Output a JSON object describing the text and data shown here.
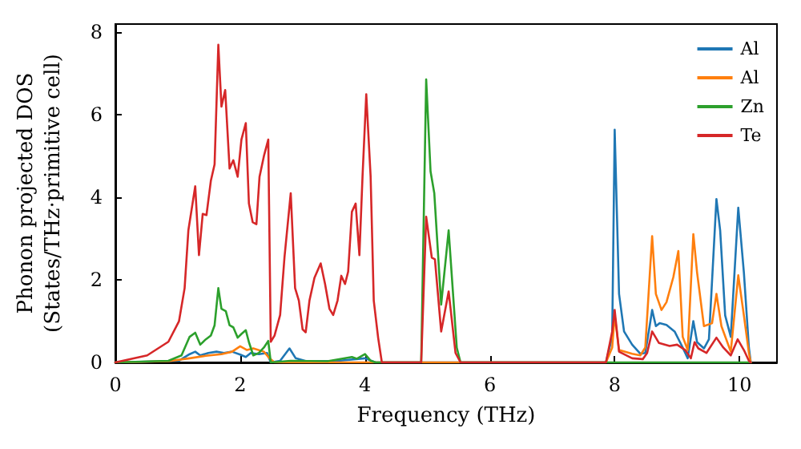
{
  "chart_data": {
    "type": "line",
    "xlabel": "Frequency (THz)",
    "ylabel": "Phonon projected DOS\n(States/THz·primitive cell)",
    "xlim": [
      0,
      10.6
    ],
    "xticks": [
      0,
      2,
      4,
      6,
      8,
      10
    ],
    "ylim": [
      0,
      8.2
    ],
    "yticks": [
      0,
      2,
      4,
      6,
      8
    ],
    "grid": false,
    "legend": "top right",
    "marker": "none",
    "line_style": "solid",
    "series": [
      {
        "name": "Al",
        "color": "#1f77b4",
        "x": [
          0,
          1.02,
          1.19,
          1.28,
          1.36,
          1.49,
          1.62,
          1.74,
          1.87,
          2.0,
          2.09,
          2.17,
          2.3,
          2.43,
          2.49,
          2.64,
          2.79,
          2.89,
          3.06,
          3.57,
          4.0,
          4.17,
          7.86,
          7.96,
          8.0,
          8.07,
          8.15,
          8.28,
          8.41,
          8.49,
          8.56,
          8.6,
          8.66,
          8.72,
          8.83,
          8.96,
          9.09,
          9.17,
          9.26,
          9.32,
          9.43,
          9.51,
          9.63,
          9.69,
          9.77,
          9.86,
          9.98,
          10.07,
          10.15,
          10.18
        ],
        "values": [
          0,
          0.04,
          0.2,
          0.26,
          0.17,
          0.23,
          0.26,
          0.23,
          0.26,
          0.19,
          0.13,
          0.23,
          0.2,
          0.23,
          0,
          0.04,
          0.34,
          0.1,
          0.03,
          0.04,
          0.1,
          0,
          0,
          0.62,
          5.64,
          1.66,
          0.75,
          0.43,
          0.21,
          0.23,
          0.88,
          1.27,
          0.88,
          0.95,
          0.91,
          0.75,
          0.36,
          0.1,
          1.0,
          0.49,
          0.34,
          0.56,
          3.96,
          3.2,
          1.14,
          0.62,
          3.75,
          2.18,
          0.36,
          0
        ]
      },
      {
        "name": "Al",
        "color": "#ff7f0e",
        "x": [
          0,
          0.85,
          1.19,
          1.45,
          1.7,
          1.87,
          2.0,
          2.11,
          2.21,
          2.38,
          2.47,
          2.55,
          7.86,
          7.96,
          8.0,
          8.07,
          8.28,
          8.41,
          8.49,
          8.6,
          8.66,
          8.75,
          8.83,
          8.94,
          9.02,
          9.09,
          9.17,
          9.26,
          9.32,
          9.43,
          9.56,
          9.63,
          9.71,
          9.86,
          9.98,
          10.07,
          10.15,
          10.18
        ],
        "values": [
          0,
          0.03,
          0.1,
          0.16,
          0.2,
          0.26,
          0.39,
          0.3,
          0.34,
          0.26,
          0.1,
          0,
          0,
          0.36,
          1.14,
          0.3,
          0.21,
          0.17,
          0.36,
          3.06,
          1.66,
          1.27,
          1.46,
          2.07,
          2.7,
          0.62,
          0.3,
          3.11,
          2.18,
          0.88,
          0.95,
          1.66,
          0.88,
          0.26,
          2.11,
          1.14,
          0.23,
          0
        ]
      },
      {
        "name": "Zn",
        "color": "#2ca02c",
        "x": [
          0,
          0.85,
          1.06,
          1.19,
          1.28,
          1.36,
          1.45,
          1.53,
          1.59,
          1.65,
          1.7,
          1.77,
          1.83,
          1.89,
          1.96,
          2.02,
          2.09,
          2.14,
          2.21,
          2.3,
          2.38,
          2.45,
          2.49,
          2.81,
          3.4,
          3.79,
          3.87,
          4.0,
          4.09,
          4.17,
          4.9,
          4.98,
          5.05,
          5.11,
          5.22,
          5.34,
          5.47,
          5.53,
          10.18
        ],
        "values": [
          0,
          0.04,
          0.17,
          0.62,
          0.72,
          0.43,
          0.56,
          0.65,
          0.9,
          1.8,
          1.3,
          1.24,
          0.9,
          0.85,
          0.6,
          0.69,
          0.78,
          0.49,
          0.17,
          0.23,
          0.36,
          0.52,
          0,
          0.04,
          0.03,
          0.13,
          0.09,
          0.2,
          0.04,
          0,
          0,
          6.86,
          4.63,
          4.1,
          1.4,
          3.2,
          0.36,
          0,
          0
        ]
      },
      {
        "name": "Te",
        "color": "#d62728",
        "x": [
          0,
          0.51,
          0.85,
          1.02,
          1.11,
          1.17,
          1.28,
          1.34,
          1.4,
          1.46,
          1.53,
          1.59,
          1.65,
          1.7,
          1.76,
          1.83,
          1.89,
          1.96,
          2.02,
          2.09,
          2.14,
          2.2,
          2.26,
          2.31,
          2.38,
          2.45,
          2.49,
          2.55,
          2.64,
          2.71,
          2.81,
          2.88,
          2.94,
          3.0,
          3.05,
          3.11,
          3.19,
          3.29,
          3.36,
          3.43,
          3.49,
          3.56,
          3.62,
          3.68,
          3.73,
          3.79,
          3.85,
          3.91,
          3.96,
          4.02,
          4.09,
          4.14,
          4.21,
          4.27,
          4.9,
          4.98,
          5.07,
          5.12,
          5.22,
          5.34,
          5.45,
          5.53,
          7.86,
          7.96,
          8.0,
          8.07,
          8.28,
          8.45,
          8.52,
          8.6,
          8.71,
          8.88,
          9.0,
          9.13,
          9.22,
          9.28,
          9.34,
          9.47,
          9.63,
          9.74,
          9.86,
          9.97,
          10.07,
          10.15,
          10.18
        ],
        "values": [
          0,
          0.17,
          0.5,
          1.0,
          1.8,
          3.2,
          4.27,
          2.6,
          3.6,
          3.57,
          4.4,
          4.8,
          7.7,
          6.2,
          6.6,
          4.7,
          4.9,
          4.5,
          5.4,
          5.8,
          3.85,
          3.4,
          3.35,
          4.5,
          5.0,
          5.4,
          0.5,
          0.65,
          1.15,
          2.55,
          4.1,
          1.8,
          1.5,
          0.8,
          0.73,
          1.5,
          2.05,
          2.4,
          1.9,
          1.3,
          1.15,
          1.5,
          2.1,
          1.9,
          2.2,
          3.65,
          3.85,
          2.6,
          4.5,
          6.5,
          4.5,
          1.5,
          0.6,
          0,
          0,
          3.53,
          2.54,
          2.5,
          0.75,
          1.72,
          0.23,
          0,
          0,
          0.75,
          1.27,
          0.26,
          0.1,
          0.08,
          0.23,
          0.75,
          0.47,
          0.4,
          0.43,
          0.3,
          0.1,
          0.49,
          0.34,
          0.23,
          0.6,
          0.36,
          0.17,
          0.56,
          0.3,
          0.04,
          0
        ]
      }
    ]
  }
}
